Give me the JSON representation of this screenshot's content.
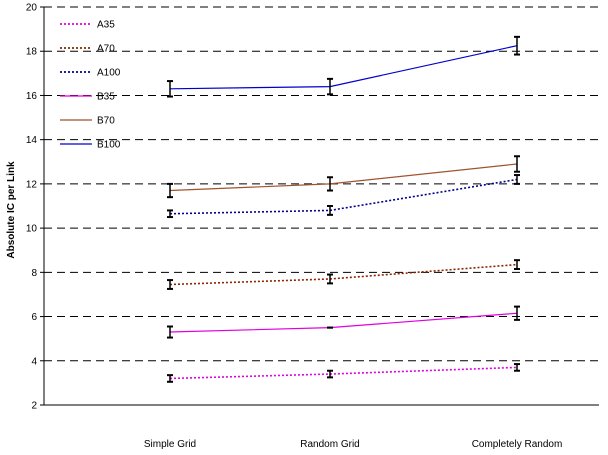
{
  "chart_data": {
    "type": "line",
    "title": "",
    "xlabel": "",
    "ylabel": "Absolute IC per Link",
    "categories": [
      "Simple Grid",
      "Random Grid",
      "Completely Random"
    ],
    "ylim": [
      2,
      20
    ],
    "yticks": [
      2,
      4,
      6,
      8,
      10,
      12,
      14,
      16,
      18,
      20
    ],
    "grid": "horizontal-dashed",
    "legend_position": "top-left",
    "series": [
      {
        "name": "A35",
        "values": [
          3.2,
          3.4,
          3.7
        ],
        "errors": [
          0.15,
          0.15,
          0.15
        ],
        "color": "#e000e0",
        "dash": "2,2"
      },
      {
        "name": "A70",
        "values": [
          7.45,
          7.7,
          8.35
        ],
        "errors": [
          0.2,
          0.2,
          0.2
        ],
        "color": "#8b2500",
        "dash": "2,2"
      },
      {
        "name": "A100",
        "values": [
          10.65,
          10.8,
          12.2
        ],
        "errors": [
          0.15,
          0.2,
          0.2
        ],
        "color": "#00008b",
        "dash": "2,2"
      },
      {
        "name": "B35",
        "values": [
          5.3,
          5.5,
          6.15
        ],
        "errors": [
          0.25,
          0.0,
          0.3
        ],
        "color": "#e000e0",
        "dash": ""
      },
      {
        "name": "B70",
        "values": [
          11.7,
          12.0,
          12.9
        ],
        "errors": [
          0.3,
          0.3,
          0.35
        ],
        "color": "#a0522d",
        "dash": ""
      },
      {
        "name": "B100",
        "values": [
          16.3,
          16.4,
          18.25
        ],
        "errors": [
          0.35,
          0.35,
          0.4
        ],
        "color": "#0000cd",
        "dash": ""
      }
    ]
  }
}
